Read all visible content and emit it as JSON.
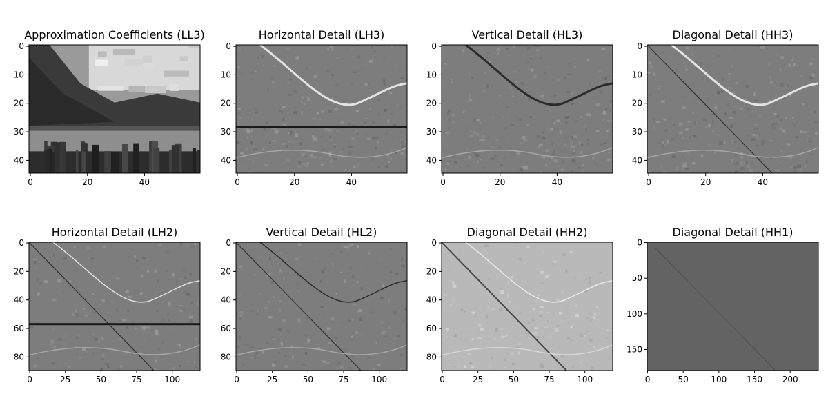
{
  "chart_data": [
    {
      "type": "heatmap",
      "title": "Approximation Coefficients (LL3)",
      "xlim": [
        -0.5,
        59.5
      ],
      "ylim": [
        44.5,
        -0.5
      ],
      "xticks": [
        0,
        20,
        40
      ],
      "yticks": [
        0,
        10,
        20,
        30,
        40
      ],
      "xtick_labels": [
        "0",
        "20",
        "40"
      ],
      "ytick_labels": [
        "0",
        "10",
        "20",
        "30",
        "40"
      ],
      "colormap": "gray",
      "content": "landscape"
    },
    {
      "type": "heatmap",
      "title": "Horizontal Detail (LH3)",
      "xlim": [
        -0.5,
        59.5
      ],
      "ylim": [
        44.5,
        -0.5
      ],
      "xticks": [
        0,
        20,
        40
      ],
      "yticks": [
        0,
        10,
        20,
        30,
        40
      ],
      "xtick_labels": [
        "0",
        "20",
        "40"
      ],
      "ytick_labels": [
        "0",
        "10",
        "20",
        "30",
        "40"
      ],
      "colormap": "gray",
      "content": "detail-curve"
    },
    {
      "type": "heatmap",
      "title": "Vertical Detail (HL3)",
      "xlim": [
        -0.5,
        59.5
      ],
      "ylim": [
        44.5,
        -0.5
      ],
      "xticks": [
        0,
        20,
        40
      ],
      "yticks": [
        0,
        10,
        20,
        30,
        40
      ],
      "xtick_labels": [
        "0",
        "20",
        "40"
      ],
      "ytick_labels": [
        "0",
        "10",
        "20",
        "30",
        "40"
      ],
      "colormap": "gray",
      "content": "detail-curve-dark"
    },
    {
      "type": "heatmap",
      "title": "Diagonal Detail (HH3)",
      "xlim": [
        -0.5,
        59.5
      ],
      "ylim": [
        44.5,
        -0.5
      ],
      "xticks": [
        0,
        20,
        40
      ],
      "yticks": [
        0,
        10,
        20,
        30,
        40
      ],
      "xtick_labels": [
        "0",
        "20",
        "40"
      ],
      "ytick_labels": [
        "0",
        "10",
        "20",
        "30",
        "40"
      ],
      "colormap": "gray",
      "content": "detail-curve-diagonal"
    },
    {
      "type": "heatmap",
      "title": "Horizontal Detail (LH2)",
      "xlim": [
        -0.5,
        119.5
      ],
      "ylim": [
        89.5,
        -0.5
      ],
      "xticks": [
        0,
        25,
        50,
        75,
        100
      ],
      "yticks": [
        0,
        20,
        40,
        60,
        80
      ],
      "xtick_labels": [
        "0",
        "25",
        "50",
        "75",
        "100"
      ],
      "ytick_labels": [
        "0",
        "20",
        "40",
        "60",
        "80"
      ],
      "colormap": "gray",
      "content": "detail-fine"
    },
    {
      "type": "heatmap",
      "title": "Vertical Detail (HL2)",
      "xlim": [
        -0.5,
        119.5
      ],
      "ylim": [
        89.5,
        -0.5
      ],
      "xticks": [
        0,
        25,
        50,
        75,
        100
      ],
      "yticks": [
        0,
        20,
        40,
        60,
        80
      ],
      "xtick_labels": [
        "0",
        "25",
        "50",
        "75",
        "100"
      ],
      "ytick_labels": [
        "0",
        "20",
        "40",
        "60",
        "80"
      ],
      "colormap": "gray",
      "content": "detail-fine-v"
    },
    {
      "type": "heatmap",
      "title": "Diagonal Detail (HH2)",
      "xlim": [
        -0.5,
        119.5
      ],
      "ylim": [
        89.5,
        -0.5
      ],
      "xticks": [
        0,
        25,
        50,
        75,
        100
      ],
      "yticks": [
        0,
        20,
        40,
        60,
        80
      ],
      "xtick_labels": [
        "0",
        "25",
        "50",
        "75",
        "100"
      ],
      "ytick_labels": [
        "0",
        "20",
        "40",
        "60",
        "80"
      ],
      "colormap": "gray",
      "content": "detail-light"
    },
    {
      "type": "heatmap",
      "title": "Diagonal Detail (HH1)",
      "xlim": [
        -0.5,
        239.5
      ],
      "ylim": [
        179.5,
        -0.5
      ],
      "xticks": [
        0,
        50,
        100,
        150,
        200
      ],
      "yticks": [
        0,
        50,
        100,
        150
      ],
      "xtick_labels": [
        "0",
        "50",
        "100",
        "150",
        "200"
      ],
      "ytick_labels": [
        "0",
        "50",
        "100",
        "150"
      ],
      "colormap": "gray",
      "content": "flat"
    }
  ]
}
